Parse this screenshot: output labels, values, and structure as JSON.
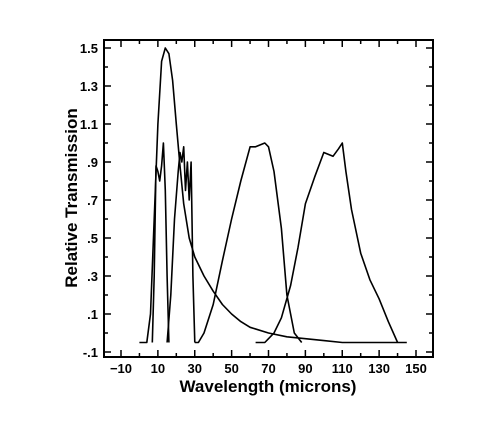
{
  "chart_data": {
    "type": "line",
    "title": "",
    "xlabel": "Wavelength (microns)",
    "ylabel": "Relative Transmission",
    "xlim": [
      -10,
      150
    ],
    "ylim": [
      -0.1,
      1.6
    ],
    "x_ticks": [
      -10,
      10,
      30,
      50,
      70,
      90,
      110,
      130,
      150
    ],
    "x_tick_labels": [
      "−10",
      "10",
      "30",
      "50",
      "70",
      "90",
      "110",
      "130",
      "150"
    ],
    "y_ticks": [
      -0.1,
      0.1,
      0.3,
      0.5,
      0.7,
      0.9,
      1.1,
      1.3,
      1.5
    ],
    "y_tick_labels": [
      "-.1",
      ".1",
      ".3",
      ".5",
      ".7",
      ".9",
      "1.1",
      "1.3",
      "1.5"
    ],
    "grid": false,
    "legend": null,
    "series": [
      {
        "x": [
          0,
          4,
          6,
          8,
          10,
          12,
          14,
          16,
          18,
          20,
          22,
          24,
          27,
          30,
          35,
          40,
          45,
          50,
          55,
          60,
          70,
          80,
          90,
          100,
          110,
          120,
          130,
          140,
          145
        ],
        "y": [
          -0.05,
          -0.05,
          0.1,
          0.6,
          1.1,
          1.43,
          1.5,
          1.47,
          1.33,
          1.1,
          0.88,
          0.68,
          0.5,
          0.4,
          0.3,
          0.22,
          0.15,
          0.1,
          0.06,
          0.03,
          0.0,
          -0.02,
          -0.03,
          -0.04,
          -0.05,
          -0.05,
          -0.05,
          -0.05,
          -0.05
        ]
      },
      {
        "x": [
          7,
          8,
          9,
          10,
          11,
          12,
          13,
          14,
          15,
          16
        ],
        "y": [
          -0.05,
          0.3,
          0.88,
          0.85,
          0.8,
          0.88,
          1.0,
          0.75,
          0.3,
          -0.05
        ]
      },
      {
        "x": [
          15,
          17,
          19,
          21,
          22,
          23,
          24,
          25,
          26,
          27,
          28,
          29,
          30
        ],
        "y": [
          -0.05,
          0.2,
          0.6,
          0.85,
          0.95,
          0.9,
          0.98,
          0.75,
          0.9,
          0.7,
          0.9,
          0.3,
          -0.05
        ]
      },
      {
        "x": [
          30,
          32,
          35,
          40,
          45,
          50,
          55,
          60,
          63,
          68,
          70,
          73,
          77,
          80,
          84,
          88
        ],
        "y": [
          -0.05,
          -0.05,
          0.0,
          0.15,
          0.38,
          0.6,
          0.8,
          0.98,
          0.98,
          1.0,
          0.98,
          0.85,
          0.55,
          0.2,
          0.0,
          -0.05
        ]
      },
      {
        "x": [
          63,
          68,
          70,
          73,
          77,
          82,
          86,
          90,
          95,
          100,
          105,
          108,
          110,
          112,
          115,
          120,
          125,
          130,
          135,
          140
        ],
        "y": [
          -0.05,
          -0.05,
          -0.03,
          0.0,
          0.08,
          0.25,
          0.45,
          0.68,
          0.82,
          0.95,
          0.93,
          0.97,
          1.0,
          0.85,
          0.65,
          0.42,
          0.28,
          0.18,
          0.06,
          -0.05
        ]
      }
    ]
  }
}
